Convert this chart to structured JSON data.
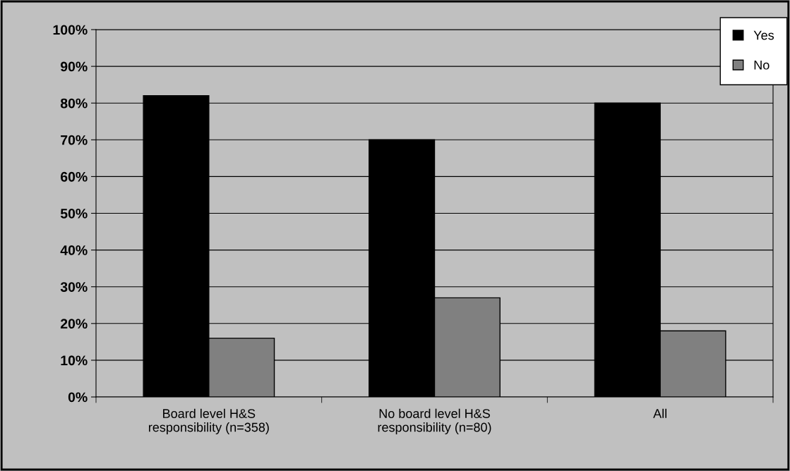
{
  "chart_data": {
    "type": "bar",
    "categories": [
      "Board level H&S\nresponsibility (n=358)",
      "No board level H&S\nresponsibility (n=80)",
      "All"
    ],
    "series": [
      {
        "name": "Yes",
        "color": "#000000",
        "values": [
          82,
          70,
          80
        ]
      },
      {
        "name": "No",
        "color": "#808080",
        "values": [
          16,
          27,
          18
        ]
      }
    ],
    "ylim": [
      0,
      100
    ],
    "yticks": [
      {
        "value": 0,
        "label": "0%"
      },
      {
        "value": 10,
        "label": "10%"
      },
      {
        "value": 20,
        "label": "20%"
      },
      {
        "value": 30,
        "label": "30%"
      },
      {
        "value": 40,
        "label": "40%"
      },
      {
        "value": 50,
        "label": "50%"
      },
      {
        "value": 60,
        "label": "60%"
      },
      {
        "value": 70,
        "label": "70%"
      },
      {
        "value": 80,
        "label": "80%"
      },
      {
        "value": 90,
        "label": "90%"
      },
      {
        "value": 100,
        "label": "100%"
      }
    ],
    "grid": "y",
    "legend": "top right"
  }
}
